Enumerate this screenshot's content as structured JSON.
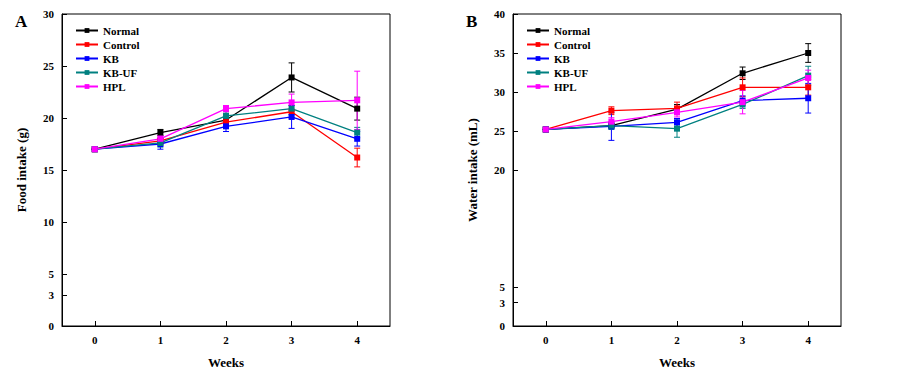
{
  "chart_data": [
    {
      "type": "line",
      "panel_label": "A",
      "x_label": "Weeks",
      "y_label": "Food intake (g)",
      "categories": [
        "0",
        "1",
        "2",
        "3",
        "4"
      ],
      "ylim": [
        0,
        30
      ],
      "yticks": [
        0,
        3,
        5,
        10,
        15,
        20,
        25,
        30
      ],
      "grid": false,
      "legend": "upper left",
      "marker": "square",
      "series": [
        {
          "name": "Normal",
          "color": "#000000",
          "values": [
            17.0,
            18.6,
            19.8,
            23.9,
            20.9
          ],
          "errors": [
            0,
            0.3,
            0.3,
            1.4,
            1.1
          ]
        },
        {
          "name": "Control",
          "color": "#ff0000",
          "values": [
            17.0,
            17.8,
            19.6,
            20.6,
            16.2
          ],
          "errors": [
            0,
            0.3,
            0.4,
            0.6,
            0.9
          ]
        },
        {
          "name": "KB",
          "color": "#0000ff",
          "values": [
            17.0,
            17.5,
            19.2,
            20.1,
            18.0
          ],
          "errors": [
            0,
            0.5,
            0.5,
            1.1,
            0.7
          ]
        },
        {
          "name": "KB-UF",
          "color": "#008080",
          "values": [
            17.0,
            17.6,
            20.2,
            20.9,
            18.6
          ],
          "errors": [
            0,
            0.4,
            0.4,
            0.6,
            0.5
          ]
        },
        {
          "name": "HPL",
          "color": "#ff00ff",
          "values": [
            17.0,
            18.0,
            20.9,
            21.5,
            21.7
          ],
          "errors": [
            0,
            0.3,
            0.3,
            0.8,
            2.8
          ]
        }
      ]
    },
    {
      "type": "line",
      "panel_label": "B",
      "x_label": "Weeks",
      "y_label": "Water intake (mL)",
      "categories": [
        "0",
        "1",
        "2",
        "3",
        "4"
      ],
      "ylim": [
        0,
        40
      ],
      "yticks": [
        0,
        3,
        5,
        20,
        25,
        30,
        35,
        40
      ],
      "grid": false,
      "legend": "upper left",
      "marker": "square",
      "series": [
        {
          "name": "Normal",
          "color": "#000000",
          "values": [
            25.2,
            25.7,
            27.8,
            32.4,
            35.0
          ],
          "errors": [
            0,
            0.3,
            0.6,
            0.8,
            1.2
          ]
        },
        {
          "name": "Control",
          "color": "#ff0000",
          "values": [
            25.2,
            27.6,
            27.9,
            30.6,
            30.6
          ],
          "errors": [
            0,
            0.5,
            0.8,
            1.2,
            1.0
          ]
        },
        {
          "name": "KB",
          "color": "#0000ff",
          "values": [
            25.2,
            25.6,
            26.1,
            28.9,
            29.2
          ],
          "errors": [
            0,
            1.8,
            0.5,
            0.6,
            1.9
          ]
        },
        {
          "name": "KB-UF",
          "color": "#008080",
          "values": [
            25.2,
            25.7,
            25.3,
            28.4,
            32.1
          ],
          "errors": [
            0,
            0.5,
            1.1,
            0.5,
            1.2
          ]
        },
        {
          "name": "HPL",
          "color": "#ff00ff",
          "values": [
            25.2,
            26.2,
            27.4,
            28.7,
            31.8
          ],
          "errors": [
            0,
            0.5,
            0.6,
            1.5,
            1.0
          ]
        }
      ]
    }
  ]
}
